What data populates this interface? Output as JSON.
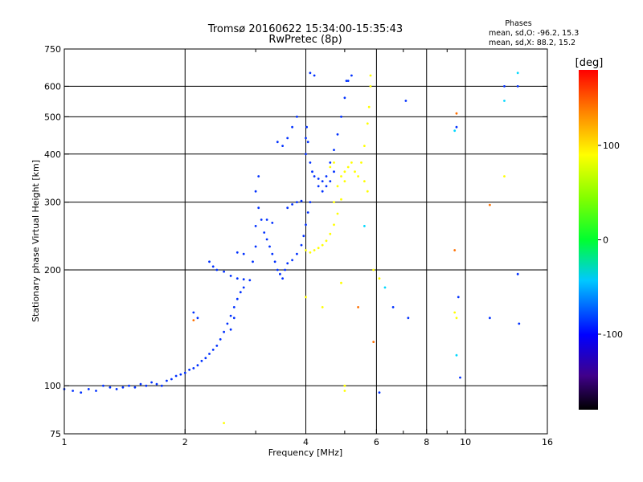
{
  "header": {
    "title_line1": "Tromsø 20160622 15:34:00-15:35:43",
    "title_line2": "RwPretec (8p)"
  },
  "stats": {
    "heading": "Phases",
    "line_o": "mean, sd,O: -96.2, 15.3",
    "line_x": "mean, sd,X:  88.2, 15.2"
  },
  "colorbar": {
    "unit_label": "[deg]",
    "range": [
      -180,
      180
    ],
    "ticks": [
      {
        "value": 100,
        "label": "100"
      },
      {
        "value": 0,
        "label": "0"
      },
      {
        "value": -100,
        "label": "-100"
      }
    ]
  },
  "chart_data": {
    "type": "scatter",
    "xlabel": "Frequency [MHz]",
    "ylabel": "Stationary phase Virtual Height [km]",
    "xscale": "log",
    "yscale": "log",
    "xlim": [
      1,
      16
    ],
    "ylim": [
      75,
      750
    ],
    "grid": true,
    "x_ticks": [
      {
        "value": 1,
        "label": "1",
        "grid": false
      },
      {
        "value": 2,
        "label": "2",
        "grid": true
      },
      {
        "value": 4,
        "label": "4",
        "grid": true
      },
      {
        "value": 6,
        "label": "6",
        "grid": true
      },
      {
        "value": 8,
        "label": "8",
        "grid": true
      },
      {
        "value": 10,
        "label": "10",
        "grid": true
      },
      {
        "value": 16,
        "label": "16",
        "grid": false
      }
    ],
    "x_minor": [
      3,
      5,
      7,
      9
    ],
    "y_ticks": [
      {
        "value": 75,
        "label": "75",
        "grid": false
      },
      {
        "value": 100,
        "label": "100",
        "grid": true
      },
      {
        "value": 200,
        "label": "200",
        "grid": true
      },
      {
        "value": 300,
        "label": "300",
        "grid": true
      },
      {
        "value": 400,
        "label": "400",
        "grid": true
      },
      {
        "value": 500,
        "label": "500",
        "grid": true
      },
      {
        "value": 600,
        "label": "600",
        "grid": true
      },
      {
        "value": 750,
        "label": "750",
        "grid": false
      }
    ],
    "series": [
      {
        "points": [
          [
            1.0,
            98
          ],
          [
            1.05,
            97
          ],
          [
            1.1,
            96
          ],
          [
            1.15,
            98
          ],
          [
            1.2,
            97
          ],
          [
            1.25,
            100
          ],
          [
            1.3,
            99
          ],
          [
            1.35,
            98
          ],
          [
            1.4,
            99
          ],
          [
            1.45,
            100
          ],
          [
            1.5,
            99
          ],
          [
            1.55,
            101
          ],
          [
            1.6,
            100
          ],
          [
            1.65,
            102
          ],
          [
            1.7,
            101
          ],
          [
            1.75,
            100
          ],
          [
            1.8,
            103
          ],
          [
            1.85,
            104
          ],
          [
            1.9,
            106
          ],
          [
            1.95,
            107
          ],
          [
            2.0,
            108
          ],
          [
            2.05,
            110
          ],
          [
            2.1,
            111
          ],
          [
            2.15,
            113
          ],
          [
            2.2,
            116
          ],
          [
            2.25,
            118
          ],
          [
            2.3,
            121
          ],
          [
            2.35,
            124
          ],
          [
            2.4,
            127
          ],
          [
            2.45,
            132
          ],
          [
            2.5,
            138
          ],
          [
            2.55,
            145
          ],
          [
            2.6,
            152
          ],
          [
            2.65,
            160
          ],
          [
            2.7,
            168
          ],
          [
            2.75,
            175
          ],
          [
            2.8,
            180
          ],
          [
            2.3,
            210
          ],
          [
            2.35,
            204
          ],
          [
            2.4,
            200
          ],
          [
            2.5,
            198
          ],
          [
            2.6,
            193
          ],
          [
            2.7,
            190
          ],
          [
            2.8,
            189
          ],
          [
            2.9,
            188
          ],
          [
            2.95,
            210
          ],
          [
            3.0,
            230
          ],
          [
            3.0,
            260
          ],
          [
            3.05,
            290
          ],
          [
            3.1,
            270
          ],
          [
            3.15,
            250
          ],
          [
            3.2,
            240
          ],
          [
            3.25,
            230
          ],
          [
            3.3,
            220
          ],
          [
            3.35,
            210
          ],
          [
            3.4,
            200
          ],
          [
            3.45,
            195
          ],
          [
            3.5,
            190
          ],
          [
            3.55,
            200
          ],
          [
            3.6,
            208
          ],
          [
            3.7,
            212
          ],
          [
            3.8,
            220
          ],
          [
            3.9,
            232
          ],
          [
            3.95,
            245
          ],
          [
            4.0,
            262
          ],
          [
            4.05,
            282
          ],
          [
            4.1,
            300
          ],
          [
            3.6,
            290
          ],
          [
            3.7,
            296
          ],
          [
            3.8,
            300
          ],
          [
            3.9,
            302
          ],
          [
            3.2,
            270
          ],
          [
            3.3,
            265
          ],
          [
            4.0,
            400
          ],
          [
            4.0,
            440
          ],
          [
            4.02,
            470
          ],
          [
            4.05,
            430
          ],
          [
            4.1,
            380
          ],
          [
            4.15,
            360
          ],
          [
            4.2,
            350
          ],
          [
            4.3,
            345
          ],
          [
            4.4,
            340
          ],
          [
            4.5,
            350
          ],
          [
            4.6,
            380
          ],
          [
            4.7,
            410
          ],
          [
            4.8,
            450
          ],
          [
            4.9,
            500
          ],
          [
            5.0,
            560
          ],
          [
            5.05,
            620
          ],
          [
            4.1,
            650
          ],
          [
            4.2,
            640
          ],
          [
            4.3,
            330
          ],
          [
            4.4,
            320
          ],
          [
            4.5,
            330
          ],
          [
            4.6,
            340
          ],
          [
            4.7,
            360
          ],
          [
            3.5,
            420
          ],
          [
            3.6,
            440
          ],
          [
            3.7,
            470
          ],
          [
            3.8,
            500
          ],
          [
            3.4,
            430
          ],
          [
            2.8,
            220
          ],
          [
            2.7,
            222
          ],
          [
            3.0,
            320
          ],
          [
            3.05,
            350
          ],
          [
            2.15,
            150
          ],
          [
            2.1,
            155
          ],
          [
            2.65,
            150
          ],
          [
            2.6,
            140
          ],
          [
            5.2,
            640
          ],
          [
            5.1,
            620
          ],
          [
            6.1,
            96
          ],
          [
            6.6,
            160
          ],
          [
            7.1,
            550
          ],
          [
            7.2,
            150
          ],
          [
            9.5,
            470
          ],
          [
            9.6,
            170
          ],
          [
            9.7,
            105
          ],
          [
            11.5,
            150
          ],
          [
            12.5,
            600
          ],
          [
            13.5,
            600
          ],
          [
            13.6,
            145
          ],
          [
            13.5,
            195
          ]
        ],
        "color": "#0030ff"
      },
      {
        "points": [
          [
            4.0,
            225
          ],
          [
            4.1,
            222
          ],
          [
            4.2,
            225
          ],
          [
            4.3,
            228
          ],
          [
            4.4,
            232
          ],
          [
            4.5,
            238
          ],
          [
            4.6,
            248
          ],
          [
            4.7,
            262
          ],
          [
            4.8,
            280
          ],
          [
            4.9,
            305
          ],
          [
            5.0,
            340
          ],
          [
            5.1,
            370
          ],
          [
            5.2,
            380
          ],
          [
            5.3,
            360
          ],
          [
            5.4,
            350
          ],
          [
            5.5,
            380
          ],
          [
            5.6,
            420
          ],
          [
            5.7,
            480
          ],
          [
            5.75,
            530
          ],
          [
            5.8,
            600
          ],
          [
            5.8,
            640
          ],
          [
            4.7,
            300
          ],
          [
            4.8,
            330
          ],
          [
            4.9,
            350
          ],
          [
            5.0,
            360
          ],
          [
            5.6,
            340
          ],
          [
            5.7,
            320
          ],
          [
            4.6,
            370
          ],
          [
            4.7,
            380
          ],
          [
            5.0,
            100
          ],
          [
            5.0,
            97
          ],
          [
            4.0,
            170
          ],
          [
            4.4,
            160
          ],
          [
            5.9,
            200
          ],
          [
            6.1,
            190
          ],
          [
            9.5,
            150
          ],
          [
            9.4,
            155
          ],
          [
            12.5,
            350
          ],
          [
            2.5,
            80
          ],
          [
            4.9,
            185
          ]
        ],
        "color": "#ffff00"
      },
      {
        "points": [
          [
            2.1,
            148
          ],
          [
            5.4,
            160
          ],
          [
            5.9,
            130
          ],
          [
            9.4,
            225
          ],
          [
            9.5,
            510
          ],
          [
            11.5,
            295
          ]
        ],
        "color": "#ff7000"
      },
      {
        "points": [
          [
            5.6,
            260
          ],
          [
            9.5,
            120
          ],
          [
            12.5,
            550
          ],
          [
            13.5,
            650
          ],
          [
            6.3,
            180
          ],
          [
            9.4,
            460
          ]
        ],
        "color": "#00d8ff"
      }
    ]
  }
}
